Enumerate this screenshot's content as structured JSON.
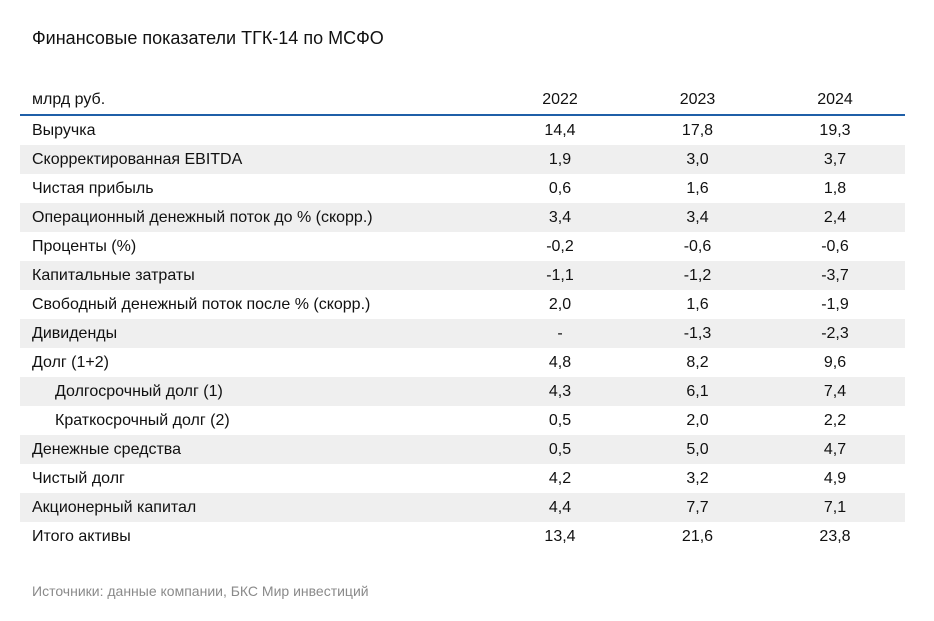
{
  "title": "Финансовые показатели ТГК-14 по МСФО",
  "source": "Источники: данные компании, БКС Мир инвестиций",
  "chart_data": {
    "type": "table",
    "unit_label": "млрд руб.",
    "columns": [
      "2022",
      "2023",
      "2024"
    ],
    "rows": [
      {
        "label": "Выручка",
        "values": [
          "14,4",
          "17,8",
          "19,3"
        ],
        "indent": false
      },
      {
        "label": "Скорректированная EBITDA",
        "values": [
          "1,9",
          "3,0",
          "3,7"
        ],
        "indent": false
      },
      {
        "label": "Чистая прибыль",
        "values": [
          "0,6",
          "1,6",
          "1,8"
        ],
        "indent": false
      },
      {
        "label": "Операционный денежный поток до % (скорр.)",
        "values": [
          "3,4",
          "3,4",
          "2,4"
        ],
        "indent": false
      },
      {
        "label": "Проценты (%)",
        "values": [
          "-0,2",
          "-0,6",
          "-0,6"
        ],
        "indent": false
      },
      {
        "label": "Капитальные затраты",
        "values": [
          "-1,1",
          "-1,2",
          "-3,7"
        ],
        "indent": false
      },
      {
        "label": "Свободный денежный поток после % (скорр.)",
        "values": [
          "2,0",
          "1,6",
          "-1,9"
        ],
        "indent": false
      },
      {
        "label": "Дивиденды",
        "values": [
          "-",
          "-1,3",
          "-2,3"
        ],
        "indent": false
      },
      {
        "label": "Долг (1+2)",
        "values": [
          "4,8",
          "8,2",
          "9,6"
        ],
        "indent": false
      },
      {
        "label": "Долгосрочный долг (1)",
        "values": [
          "4,3",
          "6,1",
          "7,4"
        ],
        "indent": true
      },
      {
        "label": "Краткосрочный долг (2)",
        "values": [
          "0,5",
          "2,0",
          "2,2"
        ],
        "indent": true
      },
      {
        "label": "Денежные средства",
        "values": [
          "0,5",
          "5,0",
          "4,7"
        ],
        "indent": false
      },
      {
        "label": "Чистый долг",
        "values": [
          "4,2",
          "3,2",
          "4,9"
        ],
        "indent": false
      },
      {
        "label": "Акционерный капитал",
        "values": [
          "4,4",
          "7,7",
          "7,1"
        ],
        "indent": false
      },
      {
        "label": "Итого активы",
        "values": [
          "13,4",
          "21,6",
          "23,8"
        ],
        "indent": false
      }
    ]
  }
}
